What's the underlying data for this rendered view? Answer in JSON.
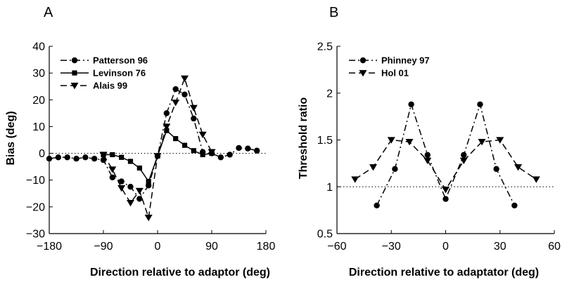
{
  "chart_data": [
    {
      "type": "line",
      "panel_label": "A",
      "xlabel": "Direction relative to adaptor (deg)",
      "ylabel": "Bias (deg)",
      "xlim": [
        -180,
        180
      ],
      "ylim": [
        -30,
        40
      ],
      "xticks": [
        -180,
        -90,
        0,
        90,
        180
      ],
      "xtick_labels": [
        "−180",
        "−90",
        "0",
        "90",
        "180"
      ],
      "yticks": [
        -30,
        -20,
        -10,
        0,
        10,
        20,
        30,
        40
      ],
      "ytick_labels": [
        "−30",
        "−20",
        "−10",
        "0",
        "10",
        "20",
        "30",
        "40"
      ],
      "reference_line": 0,
      "legend_position": "top-left",
      "series": [
        {
          "name": "Patterson 96",
          "marker": "circle",
          "dash": "dashdot",
          "x": [
            -180,
            -165,
            -150,
            -135,
            -120,
            -105,
            -90,
            -75,
            -60,
            -45,
            -30,
            -15,
            0,
            15,
            30,
            45,
            60,
            75,
            90,
            105,
            120,
            135,
            150,
            165
          ],
          "y": [
            -2,
            -1.5,
            -1.5,
            -2,
            -1.5,
            -2,
            -2.5,
            -9,
            -10.5,
            -12.5,
            -17,
            -12,
            -1,
            15,
            24,
            22,
            13,
            0.5,
            0,
            -1.5,
            -0.5,
            2,
            1.8,
            1
          ]
        },
        {
          "name": "Levinson 76",
          "marker": "square",
          "dash": "solid",
          "x": [
            -90,
            -75,
            -60,
            -45,
            -30,
            -15,
            0,
            15,
            30,
            45,
            60,
            75,
            90
          ],
          "y": [
            -0.5,
            -0.5,
            -1.5,
            -3,
            -5.5,
            -10.5,
            -1,
            8.5,
            5.5,
            3,
            1,
            -0.5,
            0
          ]
        },
        {
          "name": "Alais 99",
          "marker": "triangle-down",
          "dash": "dashed",
          "x": [
            -90,
            -75,
            -60,
            -45,
            -30,
            -15,
            0,
            15,
            30,
            45,
            60,
            75,
            90
          ],
          "y": [
            -0.5,
            -6,
            -13,
            -18.5,
            -14,
            -24,
            -1,
            10,
            19,
            28,
            17,
            7,
            0.5
          ]
        }
      ]
    },
    {
      "type": "line",
      "panel_label": "B",
      "xlabel": "Direction relative to adaptator (deg)",
      "ylabel": "Threshold ratio",
      "xlim": [
        -60,
        60
      ],
      "ylim": [
        0.5,
        2.5
      ],
      "xticks": [
        -60,
        -30,
        0,
        30,
        60
      ],
      "xtick_labels": [
        "−60",
        "−30",
        "0",
        "30",
        "60"
      ],
      "yticks": [
        0.5,
        1,
        1.5,
        2,
        2.5
      ],
      "ytick_labels": [
        "0.5",
        "1",
        "1.5",
        "2",
        "2.5"
      ],
      "reference_line": 1,
      "legend_position": "top-left",
      "series": [
        {
          "name": "Phinney 97",
          "marker": "circle",
          "dash": "dashdot",
          "x": [
            -38,
            -28,
            -19,
            -10,
            0,
            10,
            19,
            28,
            38
          ],
          "y": [
            0.8,
            1.19,
            1.88,
            1.34,
            0.87,
            1.34,
            1.88,
            1.19,
            0.8
          ]
        },
        {
          "name": "Hol 01",
          "marker": "triangle-down",
          "dash": "dashed",
          "x": [
            -50,
            -40,
            -30,
            -20,
            -10,
            0,
            10,
            20,
            30,
            40,
            50
          ],
          "y": [
            1.08,
            1.21,
            1.5,
            1.48,
            1.28,
            0.97,
            1.28,
            1.48,
            1.5,
            1.21,
            1.08
          ]
        }
      ]
    }
  ]
}
